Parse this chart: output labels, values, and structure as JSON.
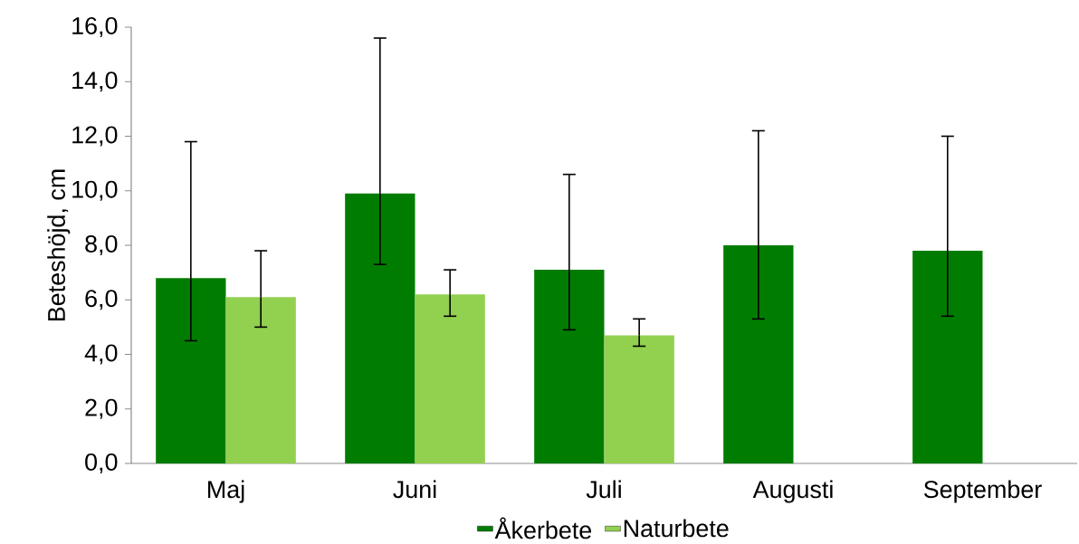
{
  "chart_data": {
    "type": "bar",
    "ylabel": "Beteshöjd, cm",
    "categories": [
      "Maj",
      "Juni",
      "Juli",
      "Augusti",
      "September"
    ],
    "series": [
      {
        "name": "Åkerbete",
        "color": "#007d00",
        "values": [
          6.8,
          9.9,
          7.1,
          8.0,
          7.8
        ],
        "errors": [
          [
            4.5,
            11.8
          ],
          [
            7.3,
            15.6
          ],
          [
            4.9,
            10.6
          ],
          [
            5.3,
            12.2
          ],
          [
            5.4,
            12.0
          ]
        ]
      },
      {
        "name": "Naturbete",
        "color": "#92d050",
        "values": [
          6.1,
          6.2,
          4.7,
          null,
          null
        ],
        "errors": [
          [
            5.0,
            7.8
          ],
          [
            5.4,
            7.1
          ],
          [
            4.3,
            5.3
          ],
          null,
          null
        ]
      }
    ],
    "ylim": [
      0,
      16
    ],
    "yticks": [
      {
        "value": 0,
        "label": "0,0"
      },
      {
        "value": 2,
        "label": "2,0"
      },
      {
        "value": 4,
        "label": "4,0"
      },
      {
        "value": 6,
        "label": "6,0"
      },
      {
        "value": 8,
        "label": "8,0"
      },
      {
        "value": 10,
        "label": "10,0"
      },
      {
        "value": 12,
        "label": "12,0"
      },
      {
        "value": 14,
        "label": "14,0"
      },
      {
        "value": 16,
        "label": "16,0"
      }
    ],
    "legend": "bottom"
  }
}
